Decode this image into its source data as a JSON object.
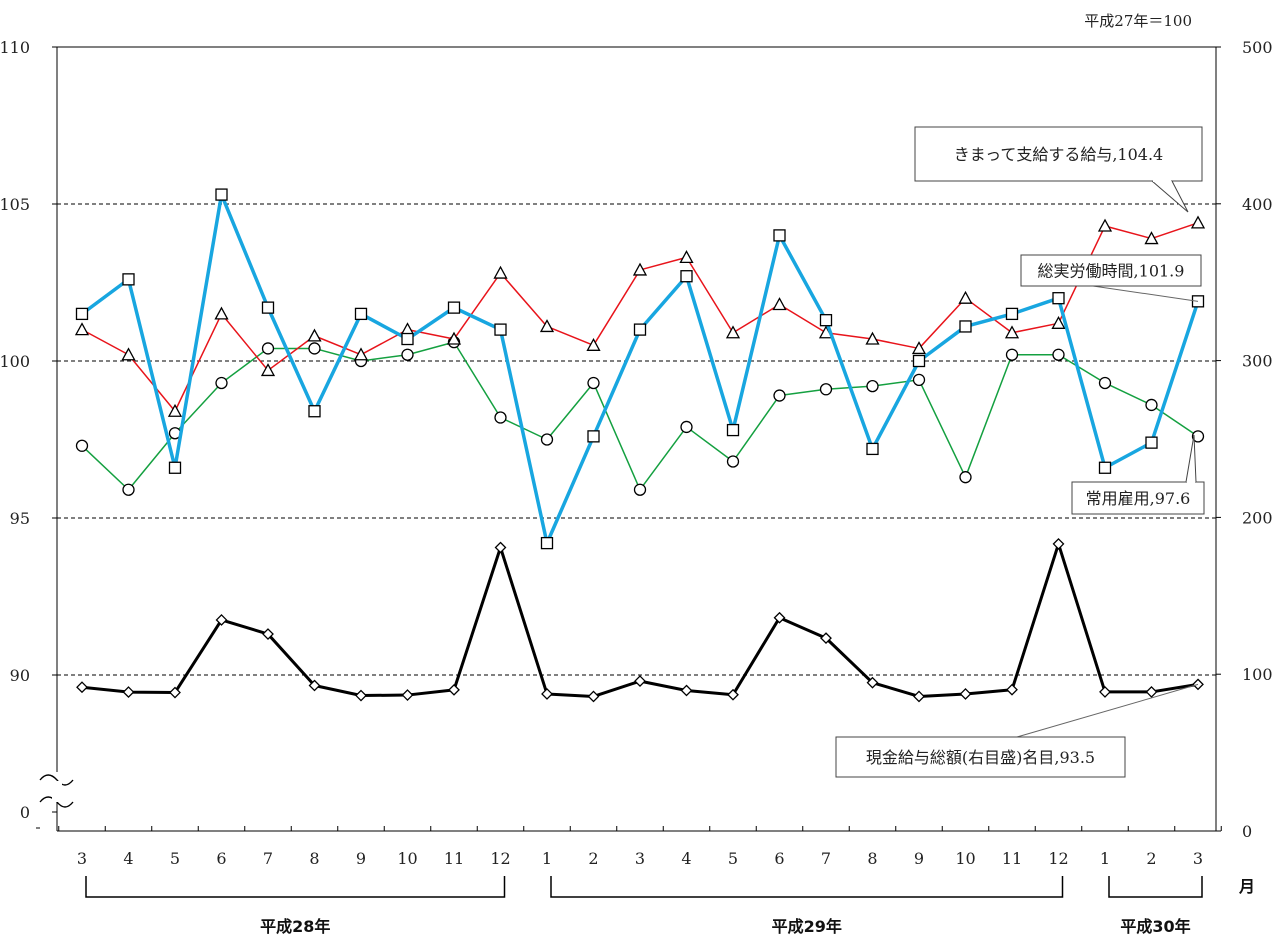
{
  "chart_data": {
    "type": "line",
    "base_note": "平成27年＝100",
    "month_unit_label": "月",
    "categories": [
      "3",
      "4",
      "5",
      "6",
      "7",
      "8",
      "9",
      "10",
      "11",
      "12",
      "1",
      "2",
      "3",
      "4",
      "5",
      "6",
      "7",
      "8",
      "9",
      "10",
      "11",
      "12",
      "1",
      "2",
      "3"
    ],
    "year_groups": [
      {
        "label": "平成28年",
        "from": 0,
        "to": 9
      },
      {
        "label": "平成29年",
        "from": 10,
        "to": 21
      },
      {
        "label": "平成30年",
        "from": 22,
        "to": 24
      }
    ],
    "left_axis": {
      "ticks": [
        "110",
        "105",
        "100",
        "95",
        "90",
        "0"
      ],
      "range": [
        85,
        110
      ],
      "break": true
    },
    "right_axis": {
      "ticks": [
        "500",
        "400",
        "300",
        "200",
        "100",
        "0"
      ],
      "range": [
        0,
        500
      ]
    },
    "grid": "horizontal dashed",
    "series": [
      {
        "key": "teiki",
        "axis": "left",
        "marker": "triangle",
        "color": "#e8141b",
        "values": [
          101.0,
          100.2,
          98.4,
          101.5,
          99.7,
          100.8,
          100.2,
          101.0,
          100.7,
          102.8,
          101.1,
          100.5,
          102.9,
          103.3,
          100.9,
          101.8,
          100.9,
          100.7,
          100.4,
          102.0,
          100.9,
          101.2,
          104.3,
          103.9,
          104.4
        ]
      },
      {
        "key": "rodo",
        "axis": "left",
        "marker": "square",
        "color": "#18a6e0",
        "values": [
          101.5,
          102.6,
          96.6,
          105.3,
          101.7,
          98.4,
          101.5,
          100.7,
          101.7,
          101.0,
          94.2,
          97.6,
          101.0,
          102.7,
          97.8,
          104.0,
          101.3,
          97.2,
          100.0,
          101.1,
          101.5,
          102.0,
          96.6,
          97.4,
          101.9
        ]
      },
      {
        "key": "koyo",
        "axis": "left",
        "marker": "circle",
        "color": "#14a040",
        "values": [
          97.3,
          95.9,
          97.7,
          99.3,
          100.4,
          100.4,
          100.0,
          100.2,
          100.6,
          98.2,
          97.5,
          99.3,
          95.9,
          97.9,
          96.8,
          98.9,
          99.1,
          99.2,
          99.4,
          96.3,
          100.2,
          100.2,
          99.3,
          98.6,
          97.6
        ]
      },
      {
        "key": "genkin",
        "axis": "right",
        "marker": "diamond",
        "color": "#000000",
        "values": [
          91.7,
          88.6,
          88.3,
          134.6,
          125.6,
          92.8,
          86.4,
          86.7,
          90.0,
          180.8,
          87.4,
          85.8,
          95.6,
          89.6,
          86.9,
          136.0,
          123.0,
          94.6,
          85.8,
          87.4,
          90.1,
          183.1,
          88.7,
          88.7,
          93.5
        ]
      }
    ],
    "callouts": [
      {
        "series": "teiki",
        "text": "きまって支給する給与,104.4"
      },
      {
        "series": "rodo",
        "text": "総実労働時間,101.9"
      },
      {
        "series": "koyo",
        "text": "常用雇用,97.6"
      },
      {
        "series": "genkin",
        "text": "現金給与総額(右目盛)名目,93.5"
      }
    ]
  }
}
